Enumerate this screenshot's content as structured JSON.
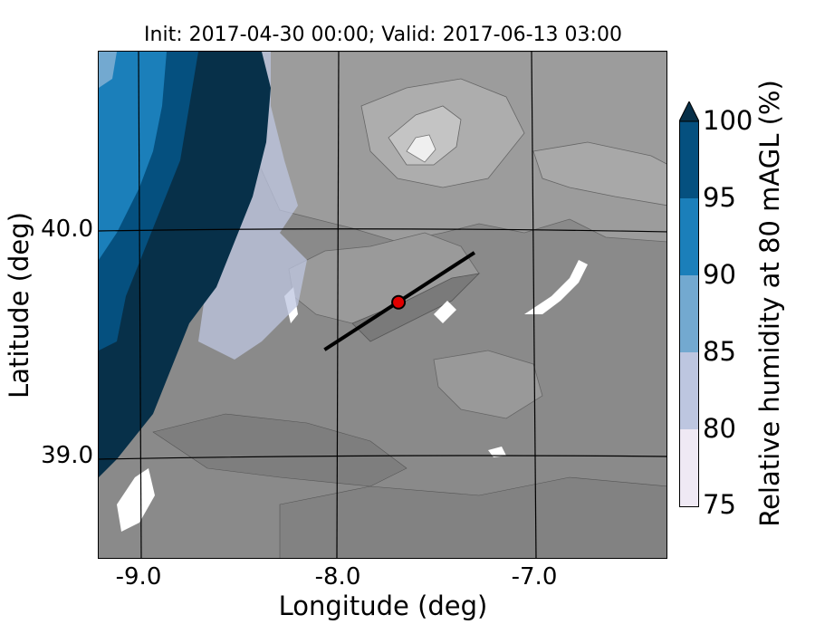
{
  "title": "Init: 2017-04-30 00:00; Valid: 2017-06-13 03:00",
  "map": {
    "xlabel": "Longitude (deg)",
    "ylabel": "Latitude (deg)",
    "x_ticks": [
      "-9.0",
      "-8.0",
      "-7.0"
    ],
    "y_ticks": [
      "40.0",
      "39.0"
    ],
    "lon_range": [
      -9.25,
      -6.4
    ],
    "lat_range": [
      38.55,
      40.8
    ],
    "transect": {
      "start": [
        -8.12,
        39.48
      ],
      "end": [
        -7.37,
        39.91
      ]
    },
    "point_marker": {
      "lon": -7.75,
      "lat": 39.69,
      "color": "#e00000"
    }
  },
  "colorbar": {
    "label": "Relative humidity at 80 mAGL (%)",
    "ticks": [
      "100",
      "95",
      "90",
      "85",
      "80",
      "75"
    ],
    "levels": [
      75,
      80,
      85,
      90,
      95,
      100
    ],
    "colors": [
      "#efe9f4",
      "#bdc6e0",
      "#73a9d0",
      "#1b7fba",
      "#05507f"
    ],
    "extend_color": "#073049"
  },
  "land_colors": {
    "base": "#888888",
    "mid": "#9a9a9a",
    "high": "#b4b4b4",
    "peak": "#eeeeee"
  }
}
